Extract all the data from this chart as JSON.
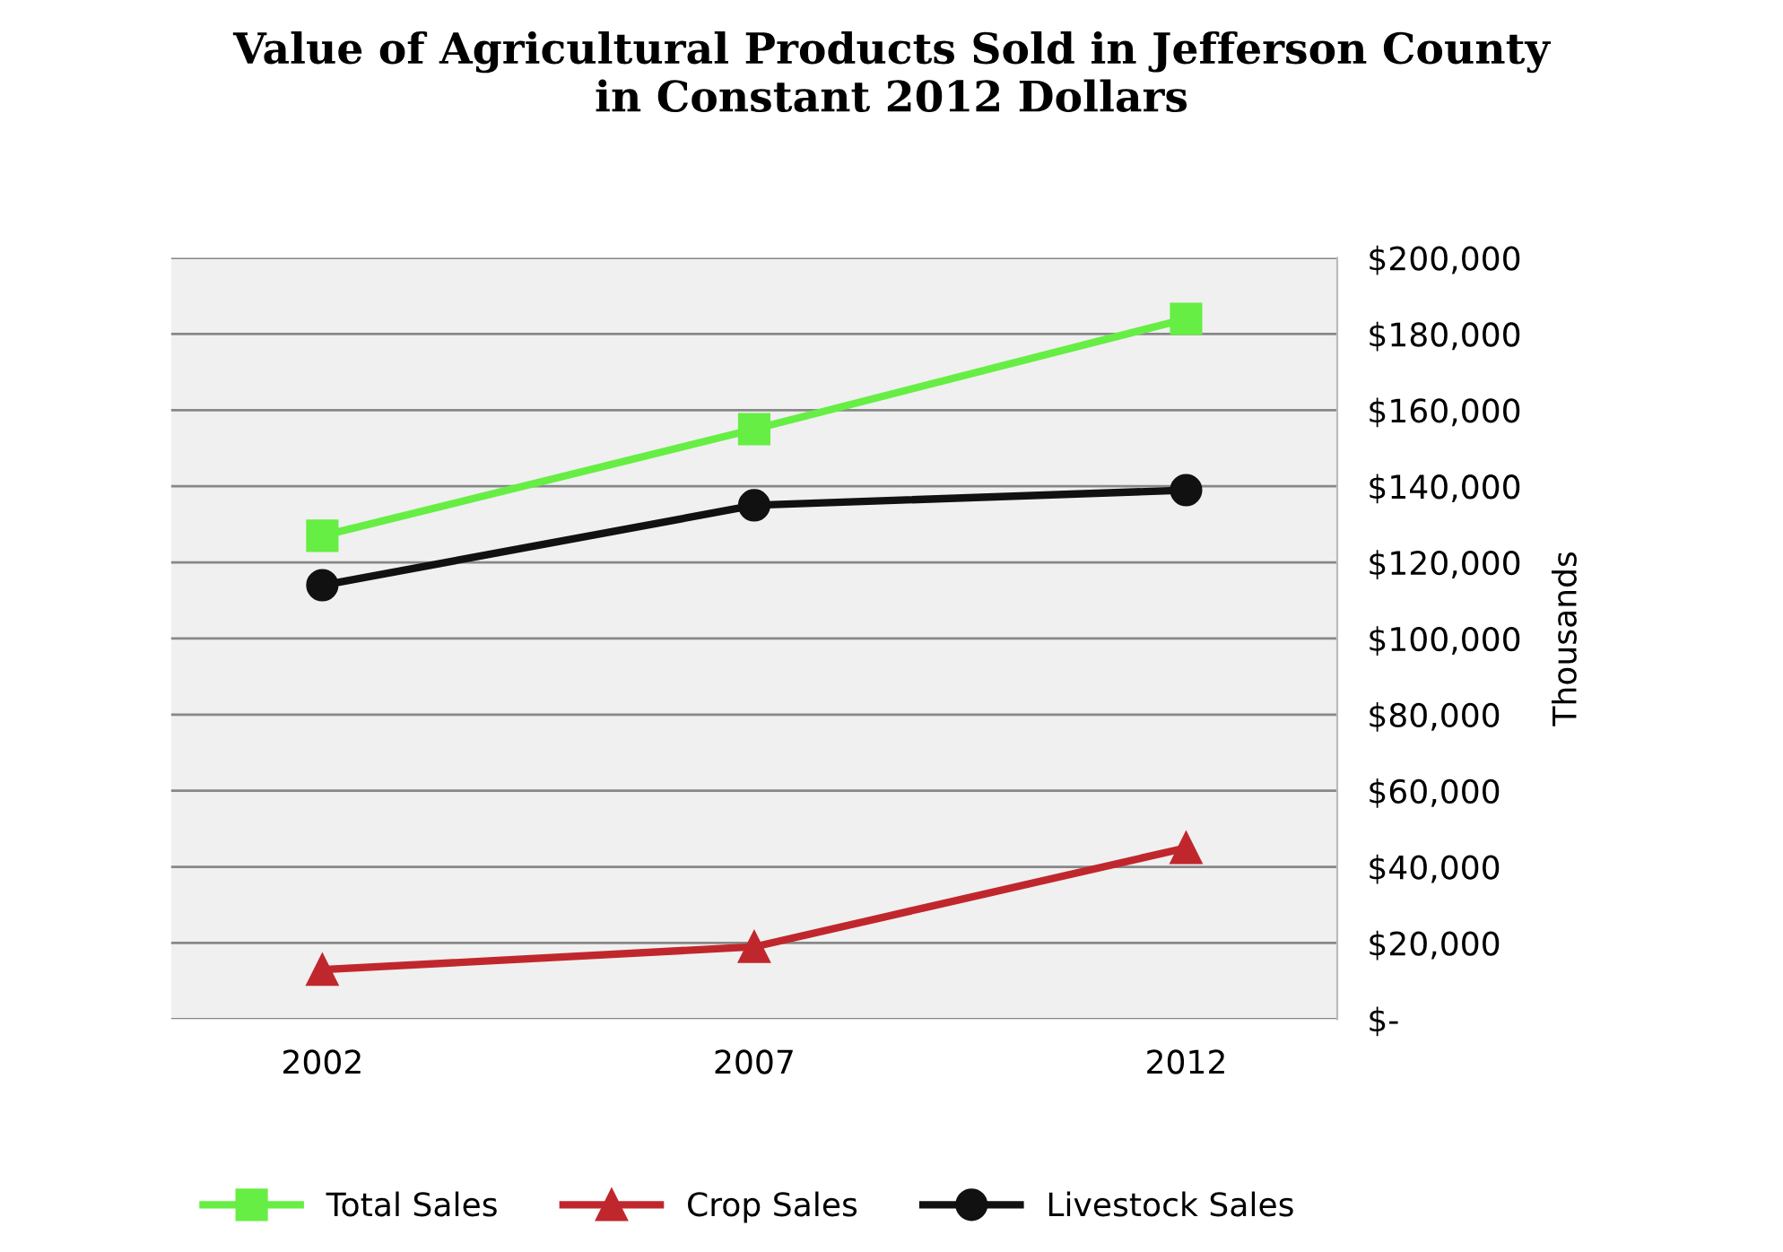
{
  "chart_data": {
    "type": "line",
    "title": "Value of Agricultural Products Sold in Jefferson County\nin Constant 2012 Dollars",
    "ylabel": "Thousands",
    "categories": [
      "2002",
      "2007",
      "2012"
    ],
    "series": [
      {
        "name": "Total Sales",
        "color": "#66ee44",
        "marker": "square",
        "values": [
          127000,
          155000,
          184000
        ]
      },
      {
        "name": "Crop Sales",
        "color": "#c0272d",
        "marker": "triangle",
        "values": [
          13000,
          19000,
          45000
        ]
      },
      {
        "name": "Livestock Sales",
        "color": "#111111",
        "marker": "circle",
        "values": [
          114000,
          135000,
          139000
        ]
      }
    ],
    "ylim": [
      0,
      200000
    ],
    "yticks": [
      {
        "value": 0,
        "label": "$-"
      },
      {
        "value": 20000,
        "label": "$20,000"
      },
      {
        "value": 40000,
        "label": "$40,000"
      },
      {
        "value": 60000,
        "label": "$60,000"
      },
      {
        "value": 80000,
        "label": "$80,000"
      },
      {
        "value": 100000,
        "label": "$100,000"
      },
      {
        "value": 120000,
        "label": "$120,000"
      },
      {
        "value": 140000,
        "label": "$140,000"
      },
      {
        "value": 160000,
        "label": "$160,000"
      },
      {
        "value": 180000,
        "label": "$180,000"
      },
      {
        "value": 200000,
        "label": "$200,000"
      }
    ],
    "grid": "y",
    "legend": "bottom",
    "line_style": "solid"
  }
}
